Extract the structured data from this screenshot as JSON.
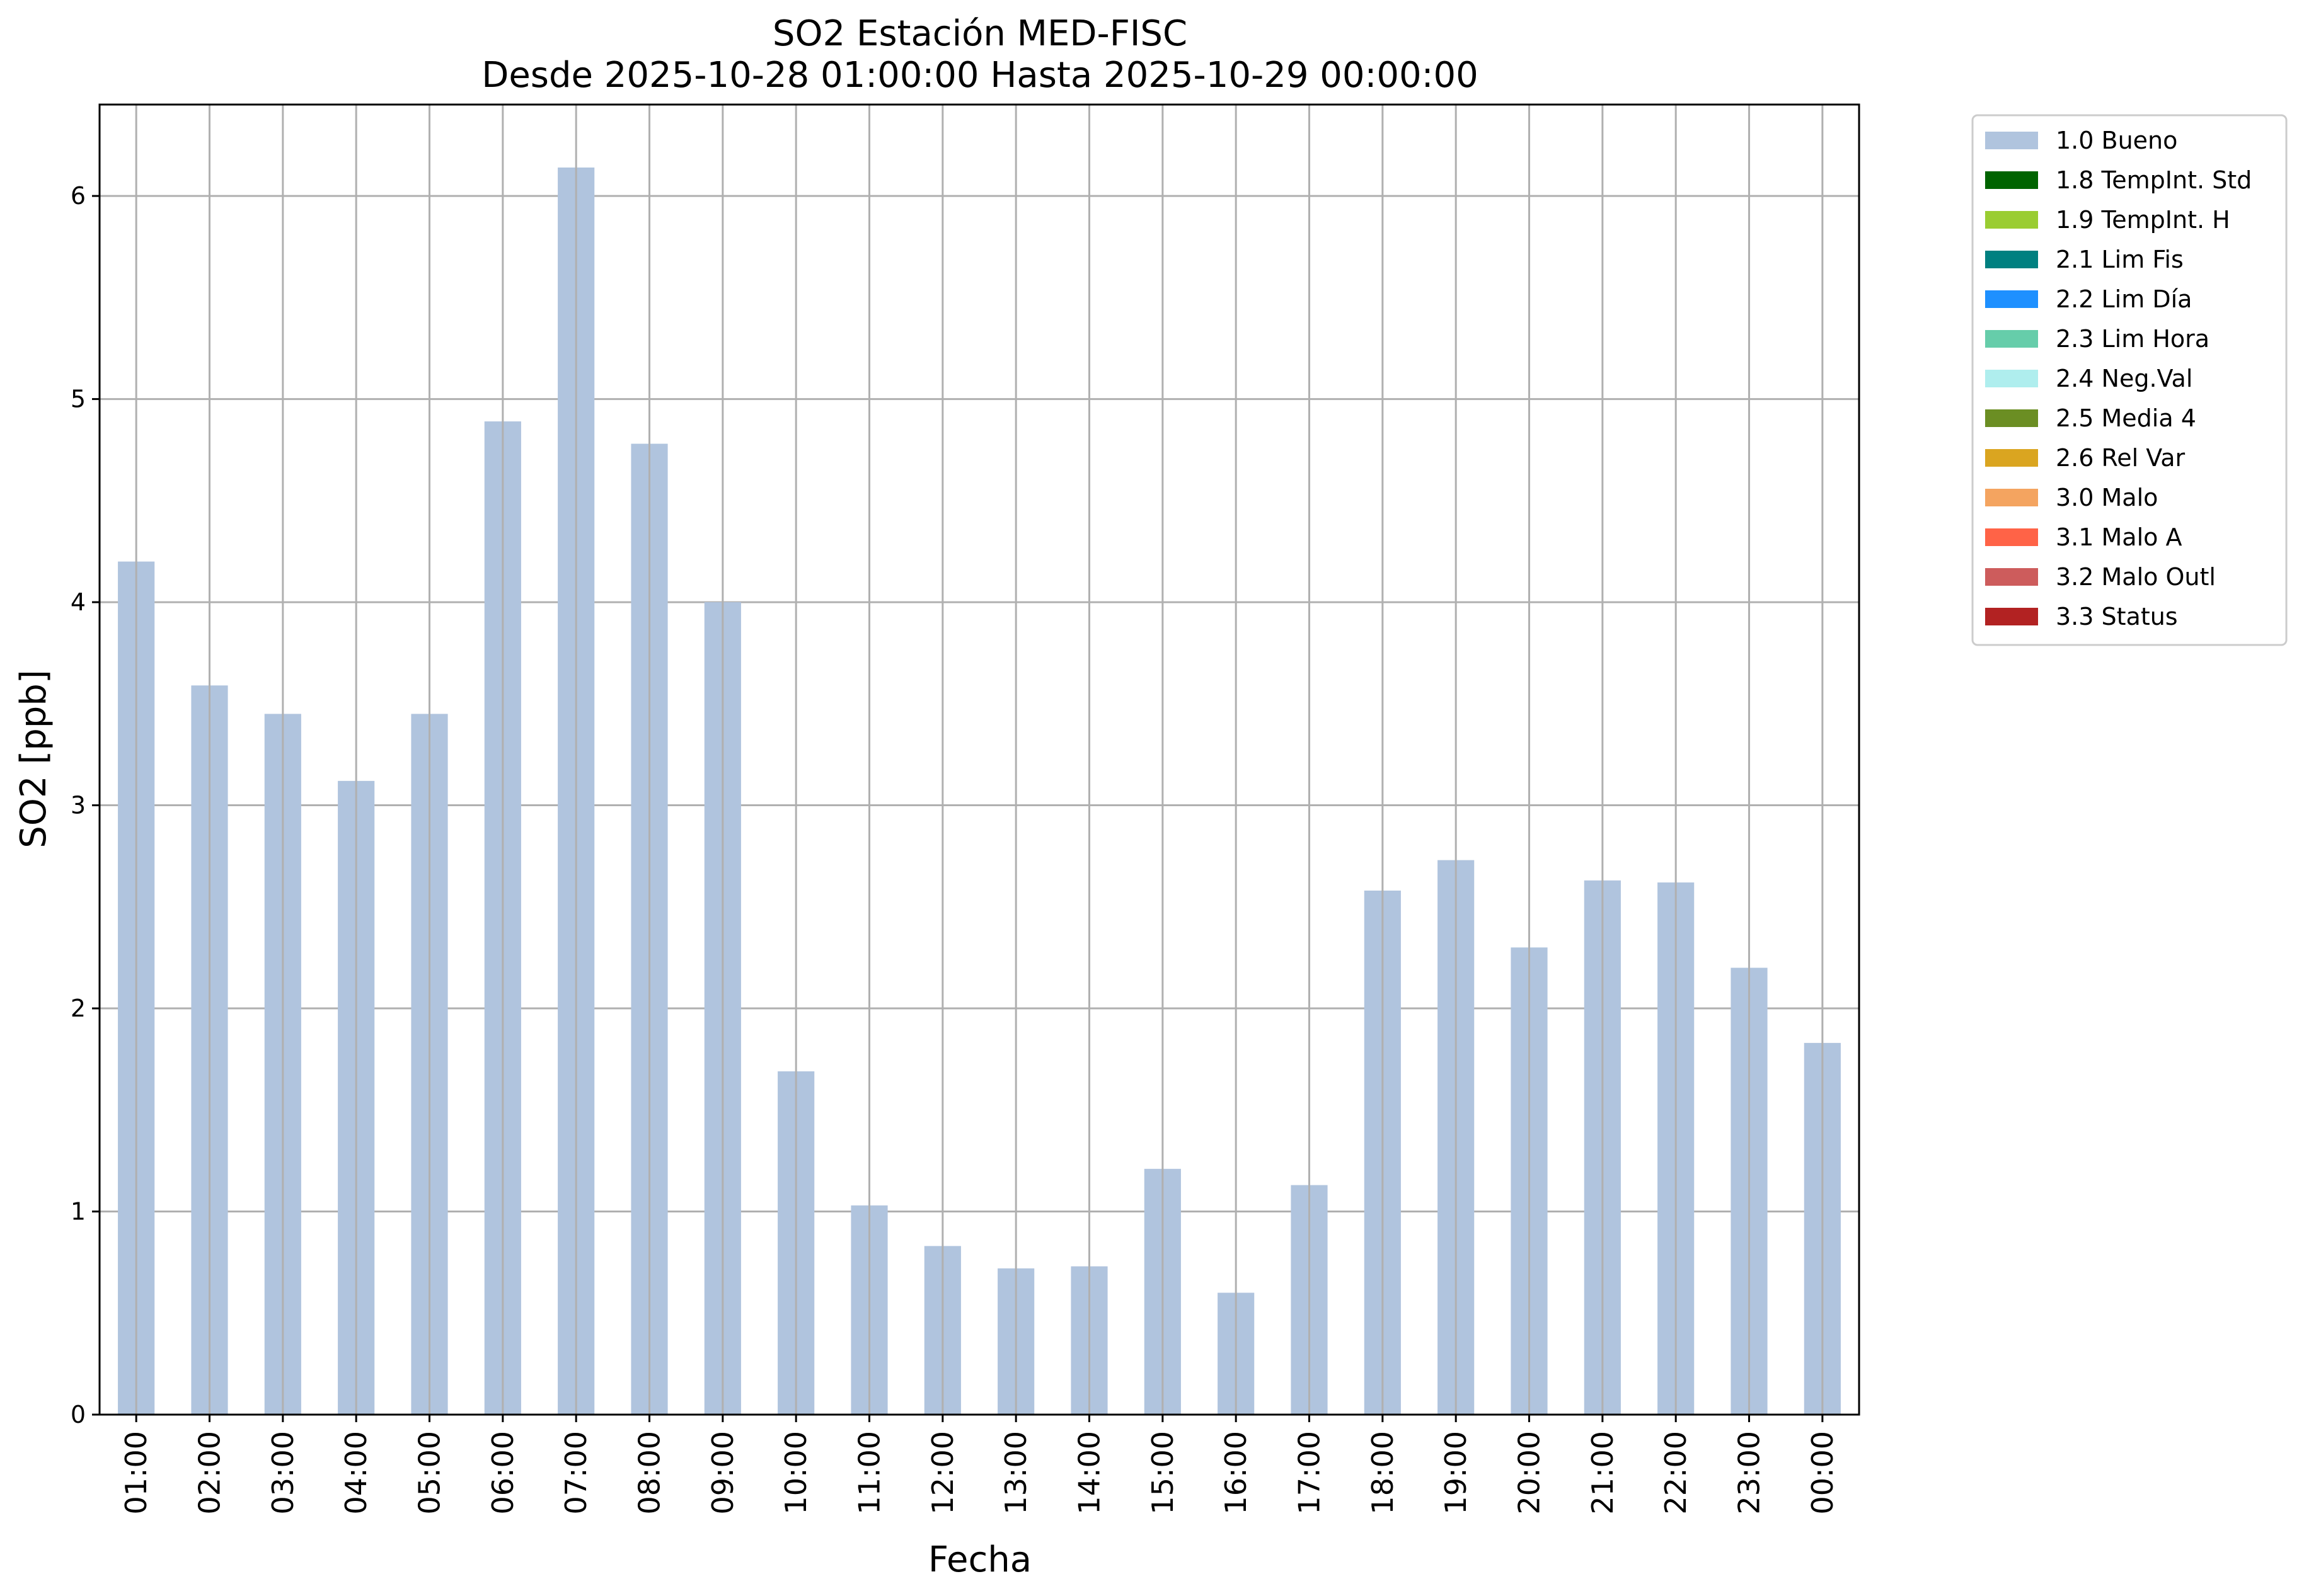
{
  "chart_data": {
    "type": "bar",
    "title": "SO2 Estación MED-FISC",
    "subtitle": "Desde 2025-10-28 01:00:00 Hasta 2025-10-29 00:00:00",
    "xlabel": "Fecha",
    "ylabel": "SO2 [ppb]",
    "ylim": [
      0,
      6.45
    ],
    "yticks": [
      0,
      1,
      2,
      3,
      4,
      5,
      6
    ],
    "grid": true,
    "legend_position": "outside-top-right",
    "categories": [
      "01:00",
      "02:00",
      "03:00",
      "04:00",
      "05:00",
      "06:00",
      "07:00",
      "08:00",
      "09:00",
      "10:00",
      "11:00",
      "12:00",
      "13:00",
      "14:00",
      "15:00",
      "16:00",
      "17:00",
      "18:00",
      "19:00",
      "20:00",
      "21:00",
      "22:00",
      "23:00",
      "00:00"
    ],
    "series": [
      {
        "name": "1.0 Bueno",
        "color": "#b0c4de",
        "values": [
          4.2,
          3.59,
          3.45,
          3.12,
          3.45,
          4.89,
          6.14,
          4.78,
          4.0,
          1.69,
          1.03,
          0.83,
          0.72,
          0.73,
          1.21,
          0.6,
          1.13,
          2.58,
          2.73,
          2.3,
          2.63,
          2.62,
          2.2,
          1.83
        ]
      }
    ],
    "legend": [
      {
        "label": "1.0 Bueno",
        "color": "#b0c4de"
      },
      {
        "label": "1.8 TempInt. Std",
        "color": "#006400"
      },
      {
        "label": "1.9 TempInt. H",
        "color": "#9acd32"
      },
      {
        "label": "2.1 Lim Fis",
        "color": "#008080"
      },
      {
        "label": "2.2 Lim Día",
        "color": "#1e90ff"
      },
      {
        "label": "2.3 Lim Hora",
        "color": "#66cdaa"
      },
      {
        "label": "2.4 Neg.Val",
        "color": "#afeeee"
      },
      {
        "label": "2.5 Media 4",
        "color": "#6b8e23"
      },
      {
        "label": "2.6 Rel Var",
        "color": "#daa520"
      },
      {
        "label": "3.0 Malo",
        "color": "#f4a460"
      },
      {
        "label": "3.1 Malo A",
        "color": "#ff6347"
      },
      {
        "label": "3.2 Malo Outl",
        "color": "#cd5c5c"
      },
      {
        "label": "3.3 Status",
        "color": "#b22222"
      }
    ]
  }
}
